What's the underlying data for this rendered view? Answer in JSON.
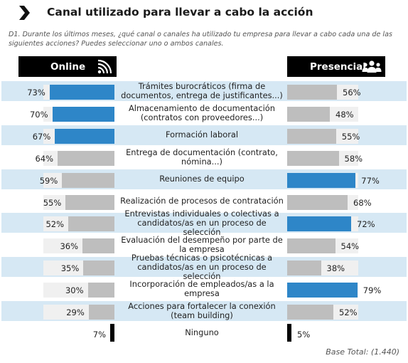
{
  "header": {
    "title": "Canal utilizado para llevar a cabo la acción",
    "question": "D1. Durante los últimos meses, ¿qué canal o canales ha utilizado tu empresa para llevar a cabo cada una de las siguientes acciones? Puedes seleccionar uno o ambos canales."
  },
  "icons": {
    "title": "chevron-right-icon",
    "online": "wifi-signal-icon",
    "presencial": "people-group-icon"
  },
  "colors": {
    "highlight": "#2e86c8",
    "neutral": "#bebebe",
    "track": "#f0f0f0",
    "band": "#d6e8f4",
    "small": "#000000"
  },
  "chart_data": {
    "type": "bar",
    "title": "Canal utilizado para llevar a cabo la acción",
    "series": [
      {
        "name": "Online",
        "values": [
          73,
          70,
          67,
          64,
          59,
          55,
          52,
          36,
          35,
          30,
          29,
          7
        ]
      },
      {
        "name": "Presencial",
        "values": [
          56,
          48,
          55,
          58,
          77,
          68,
          72,
          54,
          38,
          79,
          52,
          5
        ]
      }
    ],
    "categories": [
      "Trámites burocráticos (firma de documentos, entrega de justificantes...)",
      "Almacenamiento de documentación (contratos con proveedores...)",
      "Formación laboral",
      "Entrega de documentación (contrato, nómina...)",
      "Reuniones de equipo",
      "Realización de procesos de contratación",
      "Entrevistas individuales o colectivas a candidatos/as en un proceso de selección",
      "Evaluación del desempeño por parte de la empresa",
      "Pruebas técnicas o psicotécnicas a candidatos/as en un proceso de selección",
      "Incorporación de empleados/as a la empresa",
      "Acciones para fortalecer la conexión (team building)",
      "Ninguno"
    ],
    "labels": [
      "Trámites burocráticos (firma de documentos, entrega de justificantes...)",
      "Almacenamiento de documentación (contratos con proveedores...)",
      "Formación laboral",
      "Entrega de documentación (contrato, nómina...)",
      "Reuniones de equipo",
      "Realización de procesos de contratación",
      "Entrevistas individuales o colectivas a candidatos/as en un proceso de selección",
      "Evaluación del desempeño por parte de la empresa",
      "Pruebas técnicas o psicotécnicas a candidatos/as en un proceso de selección",
      "Incorporación de empleados/as a la empresa",
      "Acciones para fortalecer la conexión (team building)",
      "Ninguno"
    ],
    "online_color": [
      "highlight",
      "highlight",
      "highlight",
      "neutral",
      "neutral",
      "neutral",
      "neutral",
      "neutral",
      "neutral",
      "neutral",
      "neutral",
      "small"
    ],
    "presencial_color": [
      "neutral",
      "neutral",
      "neutral",
      "neutral",
      "highlight",
      "neutral",
      "highlight",
      "neutral",
      "neutral",
      "highlight",
      "neutral",
      "small"
    ],
    "online_label": "Online",
    "presencial_label": "Presencial",
    "xlim": [
      0,
      100
    ],
    "footnote": "Base Total: (1.440)"
  }
}
